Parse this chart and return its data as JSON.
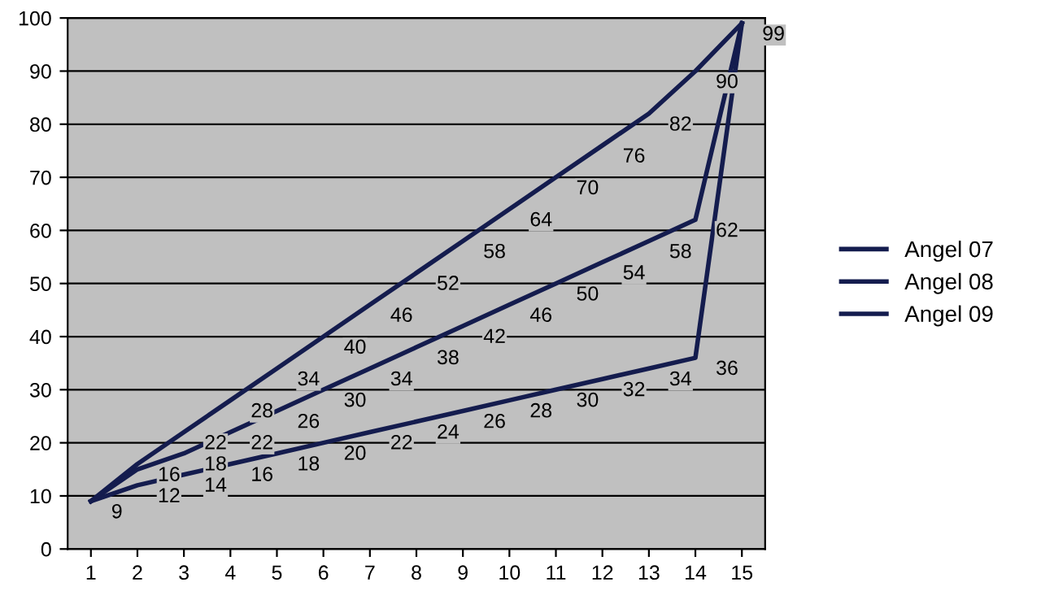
{
  "chart_data": {
    "type": "line",
    "categories": [
      "1",
      "2",
      "3",
      "4",
      "5",
      "6",
      "7",
      "8",
      "9",
      "10",
      "11",
      "12",
      "13",
      "14",
      "15"
    ],
    "series": [
      {
        "name": "Angel 07",
        "color": "#141c4e",
        "values": [
          9,
          16,
          22,
          28,
          34,
          40,
          46,
          52,
          58,
          64,
          70,
          76,
          82,
          90,
          99
        ],
        "value_labels": [
          "9",
          "16",
          "22",
          "28",
          "34",
          "40",
          "46",
          "52",
          "58",
          "64",
          "70",
          "76",
          "82",
          "90",
          "99"
        ]
      },
      {
        "name": "Angel 08",
        "color": "#141c4e",
        "values": [
          9,
          15,
          18,
          22,
          26,
          30,
          34,
          38,
          42,
          46,
          50,
          54,
          58,
          62,
          99
        ],
        "value_labels": [
          null,
          null,
          "18",
          "22",
          "26",
          "30",
          "34",
          "38",
          "42",
          "46",
          "50",
          "54",
          "58",
          "62",
          null
        ]
      },
      {
        "name": "Angel 09",
        "color": "#141c4e",
        "values": [
          9,
          12,
          14,
          16,
          18,
          20,
          22,
          24,
          26,
          28,
          30,
          32,
          34,
          36,
          99
        ],
        "value_labels": [
          null,
          "12",
          "14",
          "16",
          "18",
          "20",
          "22",
          "24",
          "26",
          "28",
          "30",
          "32",
          "34",
          "36",
          null
        ]
      }
    ],
    "ylim": [
      0,
      100
    ],
    "yticks": [
      0,
      10,
      20,
      30,
      40,
      50,
      60,
      70,
      80,
      90,
      100
    ],
    "grid": "y",
    "legend": "right",
    "marker": "none",
    "line_style": "solid"
  }
}
